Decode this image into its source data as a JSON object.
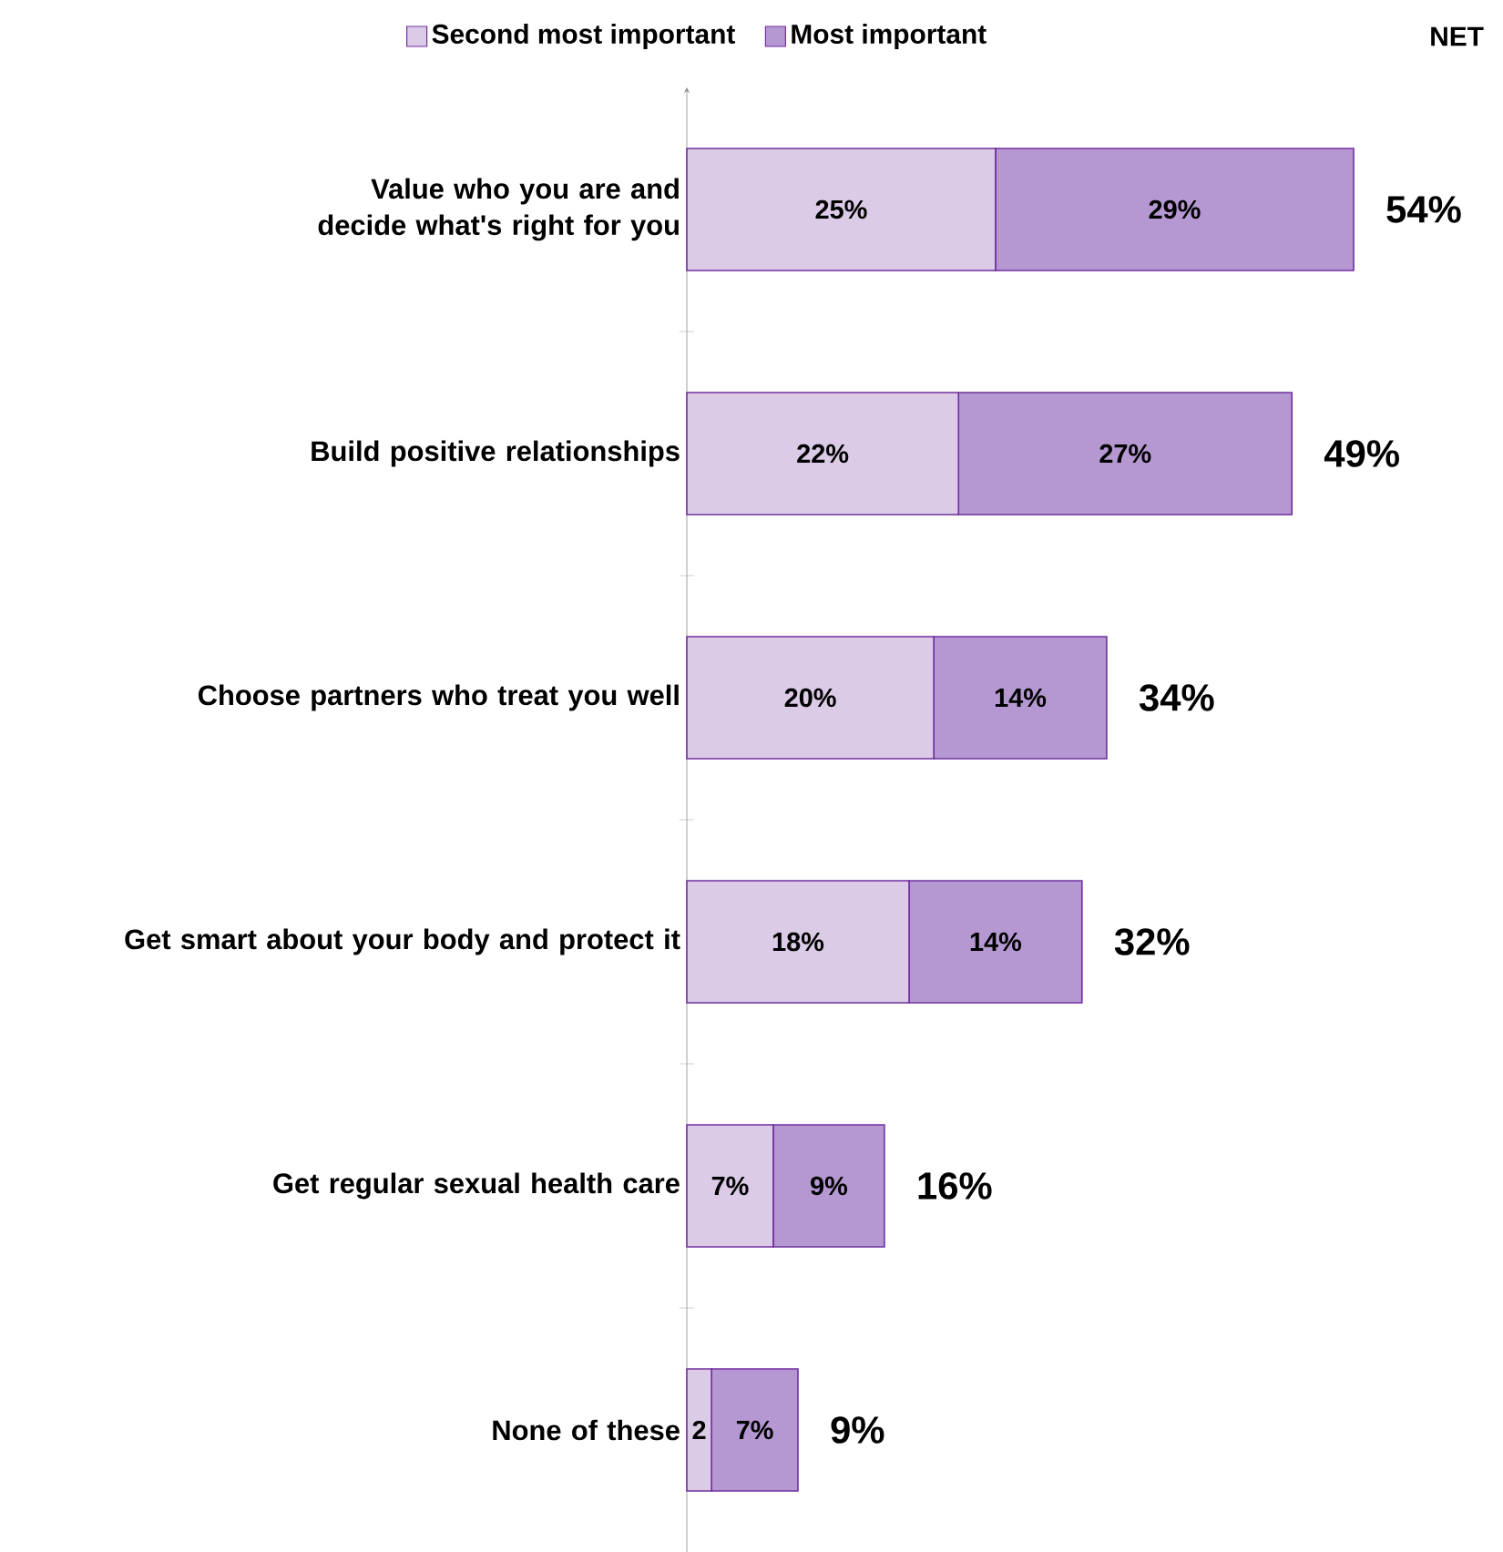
{
  "chart_data": {
    "type": "bar",
    "orientation": "horizontal",
    "stacked": true,
    "legend": "top",
    "tick_labels": "y",
    "categories": [
      "Value who you are and decide what's right for you",
      "Build positive relationships",
      "Choose partners who treat you well",
      "Get smart about your body and protect it",
      "Get regular sexual health care",
      "None of these"
    ],
    "series": [
      {
        "name": "Second most important",
        "color": "#dccbe7",
        "values": [
          25,
          22,
          20,
          18,
          7,
          2
        ],
        "value_labels": [
          "25%",
          "22%",
          "20%",
          "18%",
          "7%",
          "2"
        ]
      },
      {
        "name": "Most important",
        "color": "#b598d2",
        "values": [
          29,
          27,
          14,
          14,
          9,
          7
        ],
        "value_labels": [
          "29%",
          "27%",
          "14%",
          "14%",
          "9%",
          "7%"
        ]
      }
    ],
    "totals": [
      "54%",
      "49%",
      "34%",
      "32%",
      "16%",
      "9%"
    ],
    "annotations": [
      "NET"
    ]
  }
}
